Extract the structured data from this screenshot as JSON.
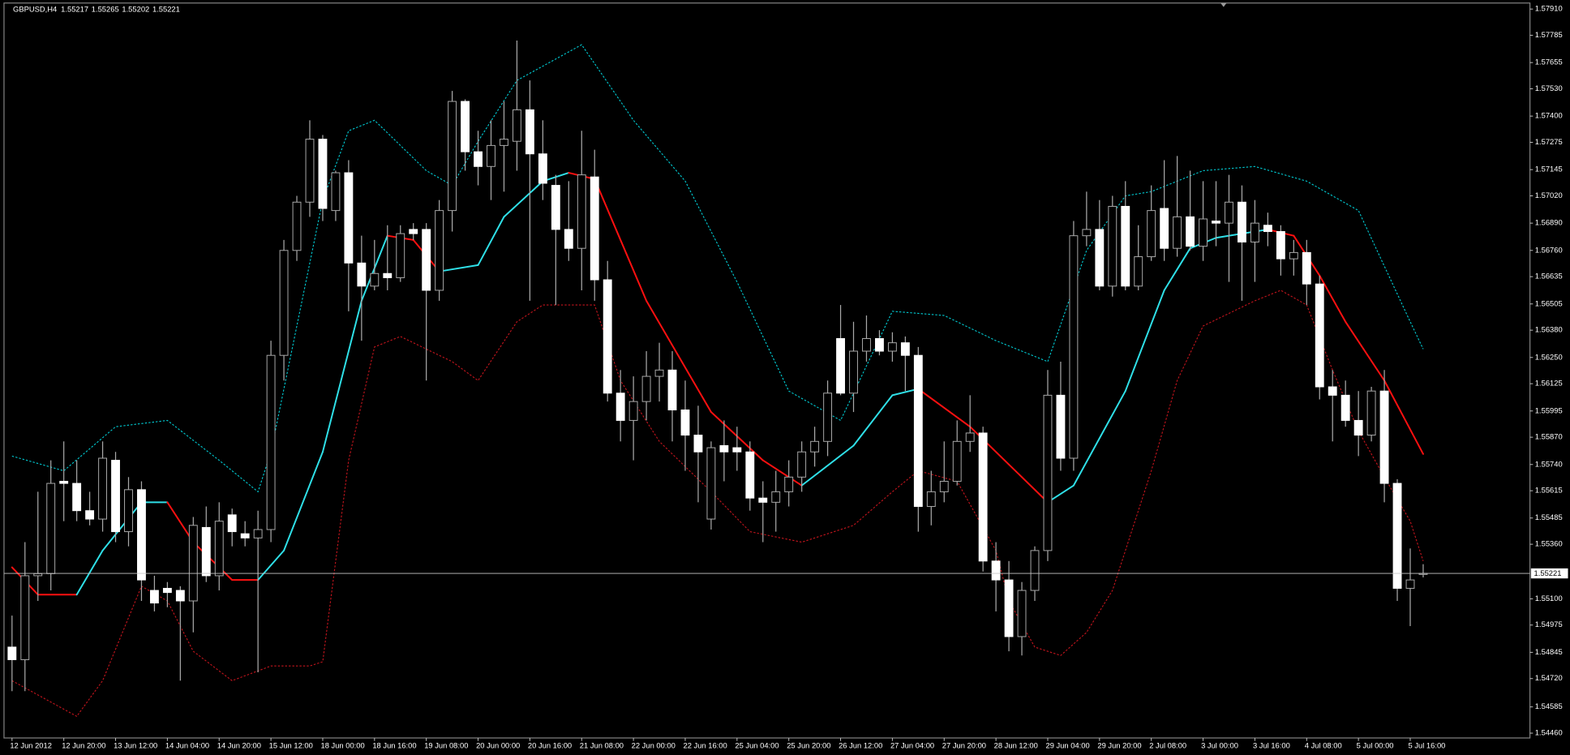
{
  "chart_data": {
    "type": "candlestick",
    "title": "GBPUSD,H4",
    "categories": [
      "12 Jun 2012",
      null,
      null,
      null,
      "12 Jun 20:00",
      null,
      null,
      null,
      "13 Jun 12:00",
      null,
      null,
      null,
      "14 Jun 04:00",
      null,
      null,
      null,
      "14 Jun 20:00",
      null,
      null,
      null,
      "15 Jun 12:00",
      null,
      null,
      null,
      "18 Jun 00:00",
      null,
      null,
      null,
      "18 Jun 16:00",
      null,
      null,
      null,
      "19 Jun 08:00",
      null,
      null,
      null,
      "20 Jun 00:00",
      null,
      null,
      null,
      "20 Jun 16:00",
      null,
      null,
      null,
      "21 Jun 08:00",
      null,
      null,
      null,
      "22 Jun 00:00",
      null,
      null,
      null,
      "22 Jun 16:00",
      null,
      null,
      null,
      "25 Jun 04:00",
      null,
      null,
      null,
      "25 Jun 20:00",
      null,
      null,
      null,
      "26 Jun 12:00",
      null,
      null,
      null,
      "27 Jun 04:00",
      null,
      null,
      null,
      "27 Jun 20:00",
      null,
      null,
      null,
      "28 Jun 12:00",
      null,
      null,
      null,
      "29 Jun 04:00",
      null,
      null,
      null,
      "29 Jun 20:00",
      null,
      null,
      null,
      "2 Jul 08:00",
      null,
      null,
      null,
      "3 Jul 00:00",
      null,
      null,
      null,
      "3 Jul 16:00",
      null,
      null,
      null,
      "4 Jul 08:00",
      null,
      null,
      null,
      "5 Jul 00:00",
      null,
      null,
      null,
      "5 Jul 16:00",
      null
    ],
    "open": [
      1.5487,
      1.5481,
      1.5521,
      1.5522,
      1.5566,
      1.5565,
      1.5552,
      1.5548,
      1.5576,
      1.5542,
      1.5562,
      1.5514,
      1.5515,
      1.5514,
      1.5509,
      1.5544,
      1.5521,
      1.555,
      1.5541,
      1.5539,
      1.5543,
      1.5626,
      1.5676,
      1.5699,
      1.5729,
      1.5695,
      1.5713,
      1.567,
      1.5659,
      1.5665,
      1.5663,
      1.5686,
      1.5686,
      1.5657,
      1.5695,
      1.5747,
      1.5723,
      1.5716,
      1.5726,
      1.5728,
      1.5743,
      1.5722,
      1.5707,
      1.5686,
      1.5677,
      1.5711,
      1.5662,
      1.5608,
      1.5595,
      1.5604,
      1.5616,
      1.5619,
      1.56,
      1.5588,
      1.5548,
      1.5583,
      1.5582,
      1.558,
      1.5558,
      1.5556,
      1.5561,
      1.5568,
      1.558,
      1.5585,
      1.5634,
      1.5608,
      1.5628,
      1.5634,
      1.5628,
      1.5632,
      1.5626,
      1.5554,
      1.5561,
      1.5566,
      1.5585,
      1.5589,
      1.5528,
      1.5519,
      1.5492,
      1.5514,
      1.5533,
      1.5607,
      1.5577,
      1.5683,
      1.5686,
      1.5659,
      1.5697,
      1.5659,
      1.5673,
      1.5696,
      1.5677,
      1.5692,
      1.5678,
      1.569,
      1.5689,
      1.5699,
      1.568,
      1.5688,
      1.5685,
      1.5672,
      1.5675,
      1.566,
      1.5611,
      1.5607,
      1.5595,
      1.5588,
      1.5609,
      1.5565,
      1.5515,
      1.55217
    ],
    "high": [
      1.5502,
      1.5537,
      1.5561,
      1.5576,
      1.5585,
      1.5576,
      1.5561,
      1.5585,
      1.558,
      1.5568,
      1.5566,
      1.5521,
      1.5518,
      1.5516,
      1.5549,
      1.5554,
      1.5556,
      1.5553,
      1.5547,
      1.5552,
      1.5633,
      1.5681,
      1.5702,
      1.5738,
      1.5731,
      1.5714,
      1.5719,
      1.5683,
      1.5681,
      1.5688,
      1.5688,
      1.5689,
      1.5689,
      1.57,
      1.5752,
      1.5748,
      1.5733,
      1.5738,
      1.5747,
      1.5776,
      1.5757,
      1.5738,
      1.5712,
      1.5709,
      1.5733,
      1.5724,
      1.5671,
      1.5619,
      1.5616,
      1.5628,
      1.5632,
      1.5628,
      1.5614,
      1.5602,
      1.5585,
      1.5595,
      1.5592,
      1.5585,
      1.5566,
      1.5571,
      1.5576,
      1.5585,
      1.5592,
      1.5614,
      1.565,
      1.5642,
      1.5645,
      1.5638,
      1.5637,
      1.5635,
      1.563,
      1.5571,
      1.5585,
      1.5595,
      1.5607,
      1.5592,
      1.5537,
      1.5528,
      1.5518,
      1.5535,
      1.5619,
      1.5623,
      1.569,
      1.5704,
      1.57,
      1.5702,
      1.5709,
      1.5688,
      1.5707,
      1.5719,
      1.5721,
      1.5714,
      1.5709,
      1.5709,
      1.5712,
      1.5707,
      1.57,
      1.5694,
      1.5688,
      1.5681,
      1.5681,
      1.5664,
      1.5619,
      1.5614,
      1.5609,
      1.5611,
      1.5619,
      1.5567,
      1.5534,
      1.55265
    ],
    "low": [
      1.5466,
      1.5466,
      1.5509,
      1.5514,
      1.5547,
      1.5547,
      1.5545,
      1.5542,
      1.5537,
      1.5535,
      1.5509,
      1.5504,
      1.5506,
      1.5471,
      1.5494,
      1.5518,
      1.5514,
      1.5535,
      1.5535,
      1.5475,
      1.5537,
      1.5614,
      1.5671,
      1.5692,
      1.569,
      1.569,
      1.5647,
      1.5633,
      1.5657,
      1.5657,
      1.5661,
      1.5681,
      1.5614,
      1.5652,
      1.5685,
      1.5714,
      1.5707,
      1.57,
      1.5704,
      1.5714,
      1.5652,
      1.57,
      1.565,
      1.5671,
      1.5657,
      1.5652,
      1.5604,
      1.5585,
      1.5576,
      1.5595,
      1.5604,
      1.5585,
      1.5571,
      1.5556,
      1.5543,
      1.5566,
      1.5571,
      1.5552,
      1.5537,
      1.5542,
      1.5554,
      1.5561,
      1.5573,
      1.5578,
      1.5607,
      1.5599,
      1.5623,
      1.5626,
      1.5623,
      1.5609,
      1.5542,
      1.5545,
      1.5556,
      1.5564,
      1.558,
      1.5523,
      1.5504,
      1.5485,
      1.5483,
      1.5509,
      1.5528,
      1.5571,
      1.5571,
      1.5678,
      1.5657,
      1.5654,
      1.5657,
      1.5657,
      1.5671,
      1.5671,
      1.5673,
      1.5676,
      1.5671,
      1.5678,
      1.5661,
      1.5652,
      1.5661,
      1.5678,
      1.5664,
      1.5664,
      1.565,
      1.5605,
      1.5585,
      1.5592,
      1.5578,
      1.5585,
      1.5556,
      1.5509,
      1.5497,
      1.55202
    ],
    "close": [
      1.5481,
      1.5521,
      1.5522,
      1.5565,
      1.5565,
      1.5552,
      1.5548,
      1.5577,
      1.5542,
      1.5562,
      1.5519,
      1.5508,
      1.5513,
      1.5509,
      1.5545,
      1.5521,
      1.5547,
      1.5542,
      1.5539,
      1.5543,
      1.5626,
      1.5676,
      1.5699,
      1.5729,
      1.5696,
      1.5713,
      1.567,
      1.5659,
      1.5665,
      1.5663,
      1.5684,
      1.5684,
      1.5657,
      1.5695,
      1.5747,
      1.5723,
      1.5716,
      1.5726,
      1.5729,
      1.5743,
      1.5722,
      1.5708,
      1.5686,
      1.5677,
      1.5712,
      1.5662,
      1.5608,
      1.5595,
      1.5604,
      1.5616,
      1.5619,
      1.56,
      1.5588,
      1.558,
      1.5582,
      1.558,
      1.558,
      1.5558,
      1.5556,
      1.5561,
      1.5568,
      1.558,
      1.5585,
      1.5608,
      1.5608,
      1.5628,
      1.5634,
      1.5628,
      1.5632,
      1.5626,
      1.5554,
      1.5561,
      1.5566,
      1.5585,
      1.5589,
      1.5528,
      1.5519,
      1.5492,
      1.5514,
      1.5533,
      1.5607,
      1.5577,
      1.5683,
      1.5686,
      1.5659,
      1.5697,
      1.5659,
      1.5673,
      1.5695,
      1.5677,
      1.5692,
      1.5678,
      1.5691,
      1.5689,
      1.5699,
      1.568,
      1.5689,
      1.5685,
      1.5672,
      1.5675,
      1.566,
      1.5611,
      1.5607,
      1.5595,
      1.5588,
      1.5609,
      1.5565,
      1.5515,
      1.5519,
      1.55221
    ],
    "bull_color": "#000000",
    "bear_color": "#ffffff",
    "wick_color": "#a8a8a8",
    "bands": [
      {
        "color": "#00c8d0",
        "x": [
          0,
          4,
          8,
          12,
          16,
          19,
          20,
          24,
          26,
          28,
          32,
          34,
          36,
          39,
          44,
          48,
          52,
          56,
          60,
          64,
          68,
          72,
          76,
          80,
          83,
          86,
          88,
          92,
          96,
          100,
          104,
          108,
          109
        ],
        "values": [
          1.5578,
          1.5571,
          1.5592,
          1.5595,
          1.5576,
          1.5561,
          1.558,
          1.57,
          1.5733,
          1.5738,
          1.5714,
          1.5707,
          1.5728,
          1.5757,
          1.5774,
          1.5738,
          1.5709,
          1.5661,
          1.5609,
          1.5595,
          1.5647,
          1.5645,
          1.5633,
          1.5623,
          1.5676,
          1.5702,
          1.5704,
          1.5714,
          1.5716,
          1.5709,
          1.5695,
          1.5642,
          1.5629
        ]
      },
      {
        "color": "#c0141c",
        "x": [
          0,
          5,
          7,
          10,
          12,
          14,
          17,
          20,
          23,
          24,
          26,
          28,
          30,
          34,
          36,
          39,
          41,
          45,
          47,
          50,
          54,
          57,
          61,
          65,
          68,
          70,
          73,
          76,
          77,
          79,
          81,
          83,
          85,
          88,
          90,
          92,
          96,
          98,
          100,
          102,
          104,
          106,
          108,
          109
        ],
        "values": [
          1.5471,
          1.5454,
          1.5471,
          1.5516,
          1.5509,
          1.5485,
          1.5471,
          1.5478,
          1.5478,
          1.548,
          1.5576,
          1.563,
          1.5635,
          1.5623,
          1.5614,
          1.5642,
          1.565,
          1.565,
          1.5614,
          1.5585,
          1.5561,
          1.5542,
          1.5537,
          1.5545,
          1.5561,
          1.5571,
          1.5566,
          1.5533,
          1.5509,
          1.5487,
          1.5483,
          1.5494,
          1.5514,
          1.5571,
          1.5614,
          1.564,
          1.5652,
          1.5657,
          1.565,
          1.5619,
          1.559,
          1.5568,
          1.5547,
          1.5528
        ]
      }
    ],
    "middle": {
      "up_color": "#2fe0e8",
      "down_color": "#ff1010",
      "x": [
        0,
        2,
        5,
        7,
        10,
        12,
        14,
        17,
        19,
        21,
        24,
        27,
        29,
        31,
        33,
        36,
        38,
        41,
        43,
        45,
        49,
        54,
        58,
        61,
        65,
        68,
        70,
        74,
        78,
        80,
        82,
        86,
        89,
        91,
        93,
        95,
        97,
        99,
        101,
        103,
        106,
        109
      ],
      "values": [
        1.5525,
        1.5512,
        1.5512,
        1.5533,
        1.5556,
        1.5556,
        1.5537,
        1.5519,
        1.5519,
        1.5533,
        1.558,
        1.5652,
        1.5683,
        1.5681,
        1.5666,
        1.5669,
        1.5692,
        1.5709,
        1.5713,
        1.571,
        1.5652,
        1.5599,
        1.5576,
        1.5564,
        1.5583,
        1.5607,
        1.561,
        1.5592,
        1.5568,
        1.5556,
        1.5564,
        1.5609,
        1.5657,
        1.5677,
        1.5682,
        1.5684,
        1.5686,
        1.5683,
        1.5664,
        1.5642,
        1.5614,
        1.5579
      ]
    },
    "ylim": [
      1.54437,
      1.57934
    ],
    "yticks": [
      {
        "value": 1.5791,
        "label": "1.57910"
      },
      {
        "value": 1.57785,
        "label": "1.57785"
      },
      {
        "value": 1.57655,
        "label": "1.57655"
      },
      {
        "value": 1.5753,
        "label": "1.57530"
      },
      {
        "value": 1.574,
        "label": "1.57400"
      },
      {
        "value": 1.57275,
        "label": "1.57275"
      },
      {
        "value": 1.57145,
        "label": "1.57145"
      },
      {
        "value": 1.5702,
        "label": "1.57020"
      },
      {
        "value": 1.5689,
        "label": "1.56890"
      },
      {
        "value": 1.5676,
        "label": "1.56760"
      },
      {
        "value": 1.56635,
        "label": "1.56635"
      },
      {
        "value": 1.56505,
        "label": "1.56505"
      },
      {
        "value": 1.5638,
        "label": "1.56380"
      },
      {
        "value": 1.5625,
        "label": "1.56250"
      },
      {
        "value": 1.56125,
        "label": "1.56125"
      },
      {
        "value": 1.55995,
        "label": "1.55995"
      },
      {
        "value": 1.5587,
        "label": "1.55870"
      },
      {
        "value": 1.5574,
        "label": "1.55740"
      },
      {
        "value": 1.55615,
        "label": "1.55615"
      },
      {
        "value": 1.55485,
        "label": "1.55485"
      },
      {
        "value": 1.5536,
        "label": "1.55360"
      },
      {
        "value": 1.551,
        "label": "1.55100"
      },
      {
        "value": 1.54975,
        "label": "1.54975"
      },
      {
        "value": 1.54845,
        "label": "1.54845"
      },
      {
        "value": 1.5472,
        "label": "1.54720"
      },
      {
        "value": 1.54585,
        "label": "1.54585"
      },
      {
        "value": 1.5446,
        "label": "1.54460"
      }
    ]
  }
}
